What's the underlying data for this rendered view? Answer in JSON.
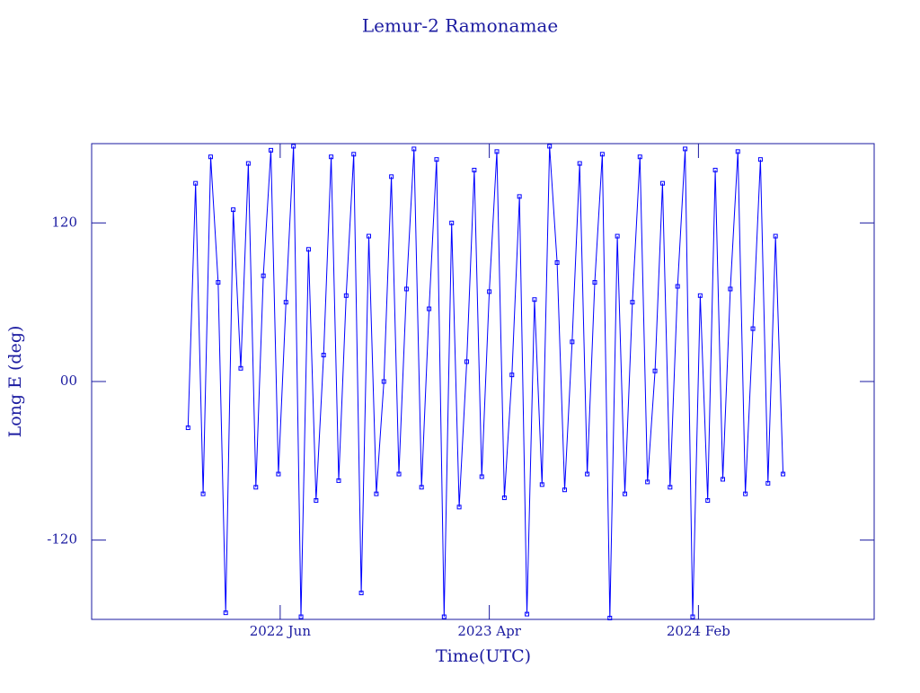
{
  "chart_data": {
    "type": "line",
    "title": "Lemur-2 Ramonamae",
    "x_label": "Time(UTC)",
    "y_label": "Long E (deg)",
    "color": "#0000ff",
    "xlim": [
      2021.666,
      2024.783
    ],
    "xticks": [
      {
        "value": 2022.417,
        "label": "2022 Jun"
      },
      {
        "value": 2023.25,
        "label": "2023 Apr"
      },
      {
        "value": 2024.083,
        "label": "2024 Feb"
      }
    ],
    "ylim": [
      -180,
      180
    ],
    "yticks": [
      {
        "value": -120,
        "label": "-120"
      },
      {
        "value": 0,
        "label": "00"
      },
      120
    ],
    "x": [
      2022.05,
      2022.08,
      2022.11,
      2022.14,
      2022.17,
      2022.2,
      2022.23,
      2022.26,
      2022.29,
      2022.32,
      2022.35,
      2022.38,
      2022.41,
      2022.44,
      2022.47,
      2022.5,
      2022.53,
      2022.56,
      2022.59,
      2022.62,
      2022.65,
      2022.68,
      2022.71,
      2022.74,
      2022.77,
      2022.8,
      2022.83,
      2022.86,
      2022.89,
      2022.92,
      2022.95,
      2022.98,
      2023.01,
      2023.04,
      2023.07,
      2023.1,
      2023.13,
      2023.16,
      2023.19,
      2023.22,
      2023.25,
      2023.28,
      2023.31,
      2023.34,
      2023.37,
      2023.4,
      2023.43,
      2023.46,
      2023.49,
      2023.52,
      2023.55,
      2023.58,
      2023.61,
      2023.64,
      2023.67,
      2023.7,
      2023.73,
      2023.76,
      2023.79,
      2023.82,
      2023.85,
      2023.88,
      2023.91,
      2023.94,
      2023.97,
      2024.0,
      2024.03,
      2024.06,
      2024.09,
      2024.12,
      2024.15,
      2024.18,
      2024.21,
      2024.24,
      2024.27,
      2024.3,
      2024.33,
      2024.36,
      2024.39,
      2024.42
    ],
    "values": [
      -35,
      150,
      -85,
      170,
      75,
      -175,
      130,
      10,
      165,
      -80,
      80,
      175,
      -70,
      60,
      178,
      -178,
      100,
      -90,
      20,
      170,
      -75,
      65,
      172,
      -160,
      110,
      -85,
      0,
      155,
      -70,
      70,
      176,
      -80,
      55,
      168,
      -178,
      120,
      -95,
      15,
      160,
      -72,
      68,
      174,
      -88,
      5,
      140,
      -176,
      62,
      -78,
      178,
      90,
      -82,
      30,
      165,
      -70,
      75,
      172,
      -179,
      110,
      -85,
      60,
      170,
      -76,
      8,
      150,
      -80,
      72,
      176,
      -178,
      65,
      -90,
      160,
      -74,
      70,
      174,
      -85,
      40,
      168,
      -77,
      110,
      -70
    ]
  }
}
